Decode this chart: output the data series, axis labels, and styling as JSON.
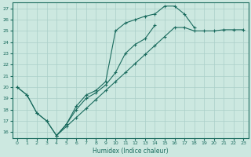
{
  "xlabel": "Humidex (Indice chaleur)",
  "bg_color": "#cce8e0",
  "line_color": "#1a6b5e",
  "grid_color": "#aacfc8",
  "xlim": [
    -0.5,
    23.5
  ],
  "ylim": [
    15.5,
    27.5
  ],
  "xticks": [
    0,
    1,
    2,
    3,
    4,
    5,
    6,
    7,
    8,
    9,
    10,
    11,
    12,
    13,
    14,
    15,
    16,
    17,
    18,
    19,
    20,
    21,
    22,
    23
  ],
  "yticks": [
    16,
    17,
    18,
    19,
    20,
    21,
    22,
    23,
    24,
    25,
    26,
    27
  ],
  "line1_x": [
    0,
    1,
    2,
    3,
    4,
    5,
    6,
    7,
    8,
    9,
    10,
    11,
    12,
    13,
    14,
    15,
    16,
    17,
    18
  ],
  "line1_y": [
    20.0,
    19.3,
    17.7,
    17.0,
    15.7,
    16.7,
    18.3,
    19.3,
    19.7,
    20.5,
    25.0,
    25.7,
    26.0,
    26.3,
    26.5,
    27.2,
    27.2,
    26.5,
    25.3
  ],
  "line2_x": [
    0,
    1,
    2,
    3,
    4,
    5,
    6,
    7,
    8,
    9,
    10,
    11,
    12,
    13,
    14
  ],
  "line2_y": [
    20.0,
    19.3,
    17.7,
    17.0,
    15.7,
    16.7,
    18.0,
    19.0,
    19.5,
    20.2,
    21.3,
    23.0,
    23.8,
    24.3,
    25.5
  ],
  "line3_x": [
    4,
    5,
    6,
    7,
    8,
    9,
    10,
    11,
    12,
    13,
    14,
    15,
    16,
    17,
    18,
    19,
    20,
    21,
    22,
    23
  ],
  "line3_y": [
    15.7,
    16.5,
    17.3,
    18.1,
    18.9,
    19.7,
    20.5,
    21.3,
    22.1,
    22.9,
    23.7,
    24.5,
    25.3,
    25.3,
    25.0,
    25.0,
    25.0,
    25.1,
    25.1,
    25.1
  ],
  "marker_size": 3.0,
  "linewidth": 0.8
}
